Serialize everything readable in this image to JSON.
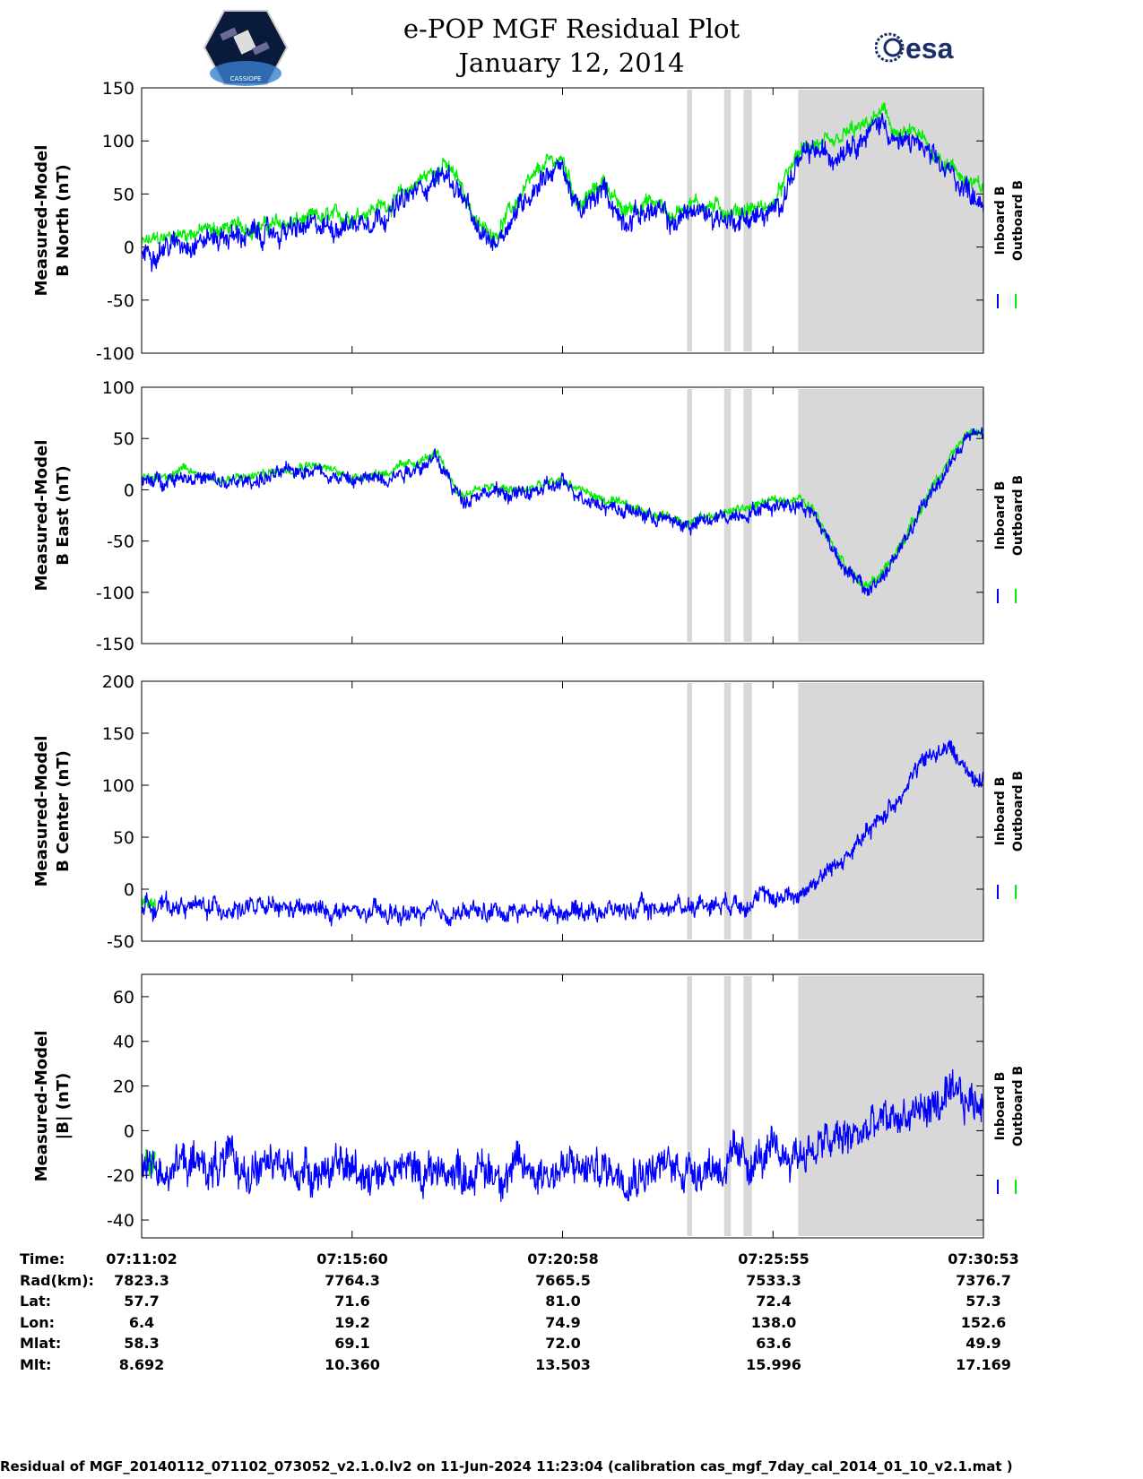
{
  "header": {
    "title_line1": "e-POP MGF Residual Plot",
    "title_line2": "January 12, 2014",
    "left_logo": "cassiope-mission-patch",
    "left_logo_text": "CASSIOPE",
    "right_logo": "esa-logo",
    "right_logo_text": "esa"
  },
  "colors": {
    "inboard": "#0000ff",
    "outboard": "#00ee00",
    "shade": "#d8d8d8",
    "axis": "#000000"
  },
  "chart_data": [
    {
      "type": "line",
      "ylabel_line1": "Measured-Model",
      "ylabel_line2": "B North (nT)",
      "ylim": [
        -100,
        150
      ],
      "yticks": [
        150,
        100,
        50,
        0,
        -50,
        -100
      ],
      "legend": [
        "Inboard B",
        "Outboard B"
      ],
      "legend_placement": "right-outside",
      "series": [
        {
          "name": "Inboard B",
          "color": "#0000ff",
          "x": [
            0,
            0.05,
            0.1,
            0.15,
            0.2,
            0.25,
            0.3,
            0.33,
            0.36,
            0.38,
            0.4,
            0.42,
            0.45,
            0.48,
            0.5,
            0.52,
            0.55,
            0.57,
            0.6,
            0.62,
            0.63,
            0.65,
            0.68,
            0.7,
            0.72,
            0.75,
            0.78,
            0.8,
            0.82,
            0.84,
            0.86,
            0.88,
            0.9,
            0.92,
            0.94,
            0.96,
            0.98,
            1.0
          ],
          "values": [
            -5,
            5,
            10,
            12,
            18,
            22,
            35,
            55,
            70,
            50,
            10,
            5,
            40,
            70,
            75,
            30,
            55,
            25,
            35,
            30,
            20,
            35,
            30,
            25,
            28,
            30,
            80,
            90,
            85,
            100,
            105,
            120,
            95,
            100,
            80,
            70,
            55,
            45
          ],
          "noise": 14
        },
        {
          "name": "Outboard B",
          "color": "#00ee00",
          "x": [
            0,
            0.05,
            0.1,
            0.15,
            0.2,
            0.25,
            0.3,
            0.33,
            0.36,
            0.38,
            0.4,
            0.42,
            0.45,
            0.48,
            0.5,
            0.52,
            0.55,
            0.57,
            0.6,
            0.62,
            0.63,
            0.65,
            0.68,
            0.7,
            0.72,
            0.75,
            0.78,
            0.8,
            0.82,
            0.84,
            0.86,
            0.88,
            0.9,
            0.92,
            0.94,
            0.96,
            0.98,
            1.0
          ],
          "values": [
            3,
            13,
            18,
            20,
            26,
            30,
            43,
            63,
            78,
            58,
            18,
            13,
            48,
            78,
            83,
            38,
            63,
            33,
            43,
            38,
            28,
            43,
            38,
            33,
            36,
            38,
            88,
            98,
            93,
            108,
            113,
            128,
            103,
            108,
            88,
            78,
            63,
            53
          ],
          "noise": 10
        }
      ],
      "shaded_regions": [
        [
          0.648,
          0.654
        ],
        [
          0.692,
          0.7
        ],
        [
          0.715,
          0.725
        ],
        [
          0.78,
          1.0
        ]
      ]
    },
    {
      "type": "line",
      "ylabel_line1": "Measured-Model",
      "ylabel_line2": "B East (nT)",
      "ylim": [
        -150,
        100
      ],
      "yticks": [
        100,
        50,
        0,
        -50,
        -100,
        -150
      ],
      "legend": [
        "Inboard B",
        "Outboard B"
      ],
      "legend_placement": "right-outside",
      "series": [
        {
          "name": "Inboard B",
          "color": "#0000ff",
          "x": [
            0,
            0.05,
            0.1,
            0.15,
            0.2,
            0.25,
            0.3,
            0.35,
            0.38,
            0.4,
            0.45,
            0.5,
            0.55,
            0.6,
            0.65,
            0.7,
            0.75,
            0.78,
            0.8,
            0.82,
            0.84,
            0.86,
            0.88,
            0.9,
            0.92,
            0.94,
            0.96,
            0.98,
            1.0
          ],
          "values": [
            5,
            15,
            5,
            12,
            22,
            8,
            15,
            30,
            -10,
            -2,
            -5,
            5,
            -15,
            -25,
            -35,
            -25,
            -15,
            -12,
            -25,
            -55,
            -80,
            -100,
            -85,
            -60,
            -30,
            0,
            25,
            50,
            55
          ],
          "noise": 10
        },
        {
          "name": "Outboard B",
          "color": "#00ee00",
          "x": [
            0,
            0.05,
            0.1,
            0.15,
            0.2,
            0.25,
            0.3,
            0.35,
            0.38,
            0.4,
            0.45,
            0.5,
            0.55,
            0.6,
            0.65,
            0.7,
            0.75,
            0.78,
            0.8,
            0.82,
            0.84,
            0.86,
            0.88,
            0.9,
            0.92,
            0.94,
            0.96,
            0.98,
            1.0
          ],
          "values": [
            9,
            19,
            9,
            16,
            26,
            12,
            19,
            34,
            -6,
            2,
            -1,
            9,
            -11,
            -21,
            -31,
            -21,
            -11,
            -8,
            -21,
            -51,
            -76,
            -96,
            -81,
            -56,
            -26,
            4,
            29,
            54,
            59
          ],
          "noise": 6
        }
      ],
      "shaded_regions": [
        [
          0.648,
          0.654
        ],
        [
          0.692,
          0.7
        ],
        [
          0.715,
          0.725
        ],
        [
          0.78,
          1.0
        ]
      ]
    },
    {
      "type": "line",
      "ylabel_line1": "Measured-Model",
      "ylabel_line2": "B Center (nT)",
      "ylim": [
        -50,
        200
      ],
      "yticks": [
        200,
        150,
        100,
        50,
        0,
        -50
      ],
      "legend": [
        "Inboard B",
        "Outboard B"
      ],
      "legend_placement": "right-outside",
      "series": [
        {
          "name": "Inboard B",
          "color": "#0000ff",
          "x": [
            0,
            0.1,
            0.2,
            0.3,
            0.4,
            0.5,
            0.6,
            0.65,
            0.7,
            0.75,
            0.78,
            0.82,
            0.86,
            0.9,
            0.92,
            0.94,
            0.96,
            0.98,
            1.0
          ],
          "values": [
            -15,
            -18,
            -20,
            -25,
            -22,
            -20,
            -20,
            -15,
            -12,
            -8,
            -5,
            20,
            50,
            90,
            115,
            130,
            135,
            115,
            105
          ],
          "noise": 12
        },
        {
          "name": "Outboard B",
          "color": "#00ee00",
          "x": [
            0,
            0.008,
            0.016
          ],
          "values": [
            -14,
            -12,
            -14
          ],
          "noise": 6
        }
      ],
      "shaded_regions": [
        [
          0.648,
          0.654
        ],
        [
          0.692,
          0.7
        ],
        [
          0.715,
          0.725
        ],
        [
          0.78,
          1.0
        ]
      ]
    },
    {
      "type": "line",
      "ylabel_line1": "Measured-Model",
      "ylabel_line2": "|B| (nT)",
      "ylim": [
        -48,
        70
      ],
      "yticks": [
        60,
        40,
        20,
        0,
        -20,
        -40
      ],
      "legend": [
        "Inboard B",
        "Outboard B"
      ],
      "legend_placement": "right-outside",
      "series": [
        {
          "name": "Inboard B",
          "color": "#0000ff",
          "x": [
            0,
            0.2,
            0.4,
            0.6,
            0.7,
            0.75,
            0.8,
            0.85,
            0.9,
            0.95,
            1.0
          ],
          "values": [
            -15,
            -17,
            -18,
            -17,
            -15,
            -12,
            -8,
            -2,
            6,
            12,
            13
          ],
          "noise": 12
        },
        {
          "name": "Outboard B",
          "color": "#00ee00",
          "x": [
            0,
            0.008,
            0.016
          ],
          "values": [
            -14,
            -15,
            -14
          ],
          "noise": 6
        }
      ],
      "shaded_regions": [
        [
          0.648,
          0.654
        ],
        [
          0.692,
          0.7
        ],
        [
          0.715,
          0.725
        ],
        [
          0.78,
          1.0
        ]
      ]
    }
  ],
  "time_table": {
    "rows": [
      {
        "label": "Time:",
        "values": [
          "07:11:02",
          "07:15:60",
          "07:20:58",
          "07:25:55",
          "07:30:53"
        ]
      },
      {
        "label": "Rad(km):",
        "values": [
          "7823.3",
          "7764.3",
          "7665.5",
          "7533.3",
          "7376.7"
        ]
      },
      {
        "label": "Lat:",
        "values": [
          "57.7",
          "71.6",
          "81.0",
          "72.4",
          "57.3"
        ]
      },
      {
        "label": "Lon:",
        "values": [
          "6.4",
          "19.2",
          "74.9",
          "138.0",
          "152.6"
        ]
      },
      {
        "label": "Mlat:",
        "values": [
          "58.3",
          "69.1",
          "72.0",
          "63.6",
          "49.9"
        ]
      },
      {
        "label": "Mlt:",
        "values": [
          "8.692",
          "10.360",
          "13.503",
          "15.996",
          "17.169"
        ]
      }
    ]
  },
  "footer": "Residual of MGF_20140112_071102_073052_v2.1.0.lv2 on 11-Jun-2024 11:23:04 (calibration cas_mgf_7day_cal_2014_01_10_v2.1.mat )"
}
